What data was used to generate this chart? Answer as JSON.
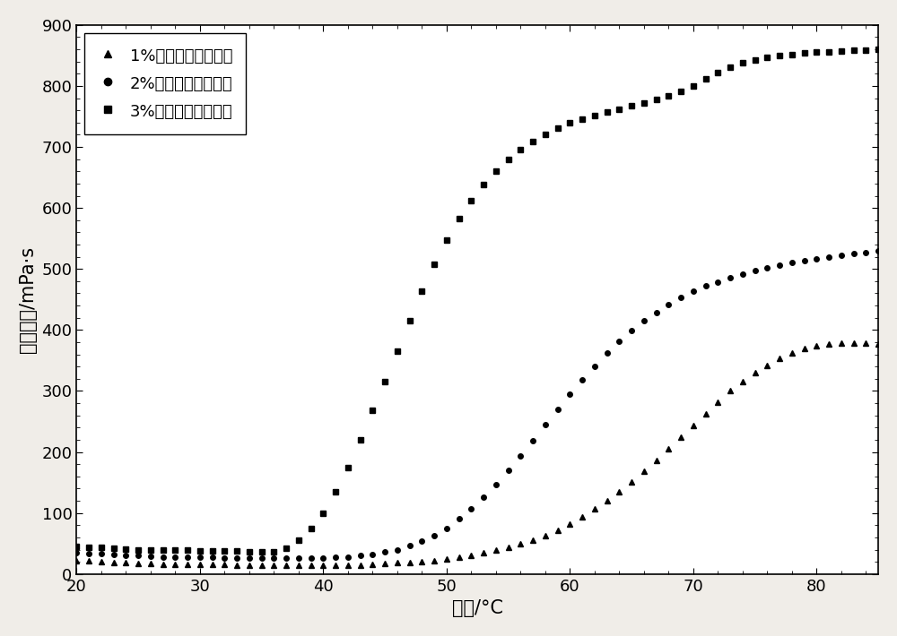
{
  "title": "",
  "xlabel": "温度/°C",
  "ylabel": "表观粘度/mPa·s",
  "xlim": [
    20,
    85
  ],
  "ylim": [
    0,
    900
  ],
  "xticks": [
    20,
    30,
    40,
    50,
    60,
    70,
    80
  ],
  "yticks": [
    0,
    100,
    200,
    300,
    400,
    500,
    600,
    700,
    800,
    900
  ],
  "series": [
    {
      "label": "1%热增黏沉降稳定剂",
      "marker": "^",
      "color": "#000000",
      "x": [
        20,
        21,
        22,
        23,
        24,
        25,
        26,
        27,
        28,
        29,
        30,
        31,
        32,
        33,
        34,
        35,
        36,
        37,
        38,
        39,
        40,
        41,
        42,
        43,
        44,
        45,
        46,
        47,
        48,
        49,
        50,
        51,
        52,
        53,
        54,
        55,
        56,
        57,
        58,
        59,
        60,
        61,
        62,
        63,
        64,
        65,
        66,
        67,
        68,
        69,
        70,
        71,
        72,
        73,
        74,
        75,
        76,
        77,
        78,
        79,
        80,
        81,
        82,
        83,
        84,
        85
      ],
      "y": [
        22,
        21,
        20,
        19,
        18,
        17,
        17,
        16,
        16,
        16,
        16,
        16,
        16,
        15,
        15,
        15,
        15,
        15,
        15,
        15,
        15,
        15,
        15,
        15,
        16,
        17,
        18,
        19,
        20,
        22,
        25,
        28,
        31,
        35,
        39,
        44,
        50,
        56,
        63,
        72,
        82,
        94,
        107,
        120,
        135,
        151,
        168,
        186,
        205,
        224,
        244,
        263,
        282,
        300,
        316,
        330,
        342,
        353,
        362,
        369,
        374,
        377,
        378,
        378,
        378,
        377
      ]
    },
    {
      "label": "2%热增黏沉降稳定剂",
      "marker": "o",
      "color": "#000000",
      "x": [
        20,
        21,
        22,
        23,
        24,
        25,
        26,
        27,
        28,
        29,
        30,
        31,
        32,
        33,
        34,
        35,
        36,
        37,
        38,
        39,
        40,
        41,
        42,
        43,
        44,
        45,
        46,
        47,
        48,
        49,
        50,
        51,
        52,
        53,
        54,
        55,
        56,
        57,
        58,
        59,
        60,
        61,
        62,
        63,
        64,
        65,
        66,
        67,
        68,
        69,
        70,
        71,
        72,
        73,
        74,
        75,
        76,
        77,
        78,
        79,
        80,
        81,
        82,
        83,
        84,
        85
      ],
      "y": [
        35,
        34,
        33,
        32,
        31,
        30,
        29,
        28,
        28,
        27,
        27,
        27,
        26,
        26,
        26,
        26,
        26,
        26,
        26,
        26,
        26,
        27,
        28,
        30,
        32,
        36,
        40,
        46,
        54,
        63,
        75,
        90,
        107,
        126,
        147,
        170,
        194,
        219,
        245,
        270,
        295,
        319,
        341,
        362,
        381,
        399,
        415,
        429,
        442,
        453,
        463,
        472,
        479,
        486,
        492,
        497,
        502,
        506,
        510,
        514,
        517,
        520,
        523,
        525,
        527,
        530
      ]
    },
    {
      "label": "3%热增黏沉降稳定剂",
      "marker": "s",
      "color": "#000000",
      "x": [
        20,
        21,
        22,
        23,
        24,
        25,
        26,
        27,
        28,
        29,
        30,
        31,
        32,
        33,
        34,
        35,
        36,
        37,
        38,
        39,
        40,
        41,
        42,
        43,
        44,
        45,
        46,
        47,
        48,
        49,
        50,
        51,
        52,
        53,
        54,
        55,
        56,
        57,
        58,
        59,
        60,
        61,
        62,
        63,
        64,
        65,
        66,
        67,
        68,
        69,
        70,
        71,
        72,
        73,
        74,
        75,
        76,
        77,
        78,
        79,
        80,
        81,
        82,
        83,
        84,
        85
      ],
      "y": [
        45,
        44,
        43,
        42,
        41,
        40,
        40,
        39,
        39,
        39,
        38,
        38,
        38,
        38,
        37,
        37,
        37,
        42,
        55,
        75,
        100,
        135,
        175,
        220,
        268,
        315,
        365,
        415,
        463,
        507,
        547,
        582,
        612,
        638,
        660,
        679,
        695,
        709,
        721,
        731,
        739,
        746,
        752,
        757,
        762,
        767,
        772,
        778,
        784,
        791,
        800,
        812,
        822,
        831,
        838,
        843,
        847,
        850,
        852,
        854,
        855,
        856,
        857,
        858,
        859,
        860
      ]
    }
  ],
  "background_color": "#f0ede8",
  "plot_bg_color": "#ffffff",
  "markersize": 4,
  "linewidth": 0,
  "legend_fontsize": 13,
  "axis_label_fontsize": 15,
  "tick_fontsize": 13
}
